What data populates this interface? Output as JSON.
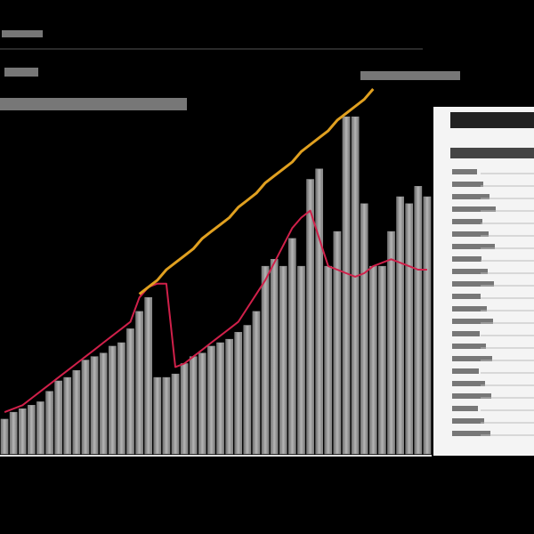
{
  "chart_data": {
    "type": "bar",
    "categories": [
      null,
      null,
      null,
      null,
      null,
      null,
      null,
      null,
      null,
      null,
      null,
      null,
      null,
      null,
      null,
      null,
      null,
      null,
      null,
      null,
      null,
      null,
      null,
      null,
      null,
      null,
      null,
      null,
      null,
      null,
      null,
      null,
      null,
      null,
      null,
      null,
      null,
      null,
      null,
      null,
      null,
      null,
      null,
      null,
      null,
      null,
      null,
      null
    ],
    "color": "#9a9a9a",
    "ylim": [
      0,
      105
    ],
    "series": [
      {
        "color": "#9a9a9a",
        "values": [
          10,
          12,
          13,
          14,
          15,
          18,
          21,
          22,
          24,
          27,
          28,
          29,
          31,
          32,
          36,
          41,
          45,
          22,
          22,
          23,
          26,
          28,
          29,
          31,
          32,
          33,
          35,
          37,
          41,
          54,
          56,
          54,
          62,
          54,
          79,
          82,
          54,
          64,
          97,
          97,
          72,
          54,
          54,
          64,
          74,
          72,
          77,
          74
        ]
      },
      {
        "color": "#d0204a",
        "values": [
          12,
          13,
          14,
          16,
          18,
          20,
          22,
          24,
          26,
          28,
          30,
          32,
          34,
          36,
          38,
          45,
          48,
          49,
          49,
          25,
          26,
          28,
          30,
          32,
          34,
          36,
          38,
          42,
          46,
          50,
          55,
          60,
          65,
          68,
          70,
          62,
          54,
          53,
          52,
          51,
          52,
          54,
          55,
          56,
          55,
          54,
          53,
          53
        ]
      },
      {
        "color": "#e0a020",
        "values": [
          null,
          null,
          null,
          null,
          null,
          null,
          null,
          null,
          null,
          null,
          null,
          null,
          null,
          null,
          null,
          46,
          48,
          50,
          53,
          55,
          57,
          59,
          62,
          64,
          66,
          68,
          71,
          73,
          75,
          78,
          80,
          82,
          84,
          87,
          89,
          91,
          93,
          96,
          98,
          100,
          102,
          105,
          null,
          null,
          null,
          null,
          null,
          null
        ]
      }
    ]
  }
}
